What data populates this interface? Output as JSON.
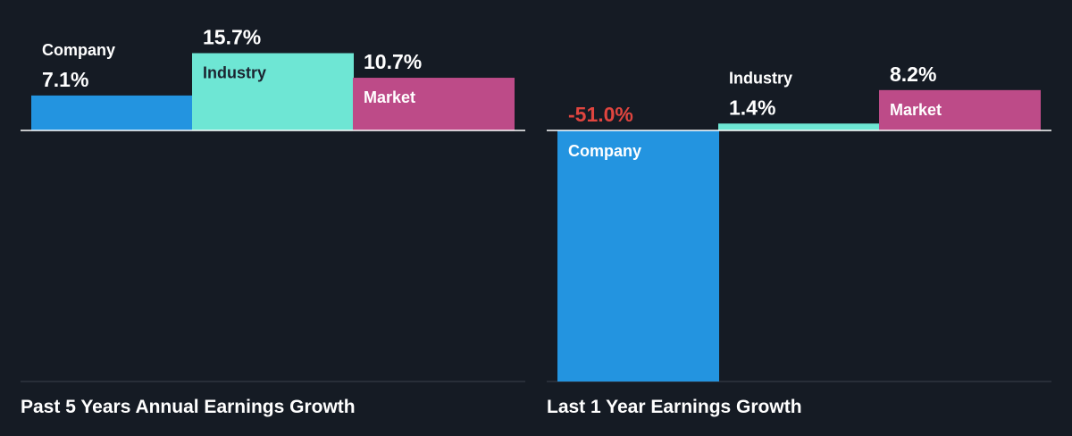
{
  "colors": {
    "background": "#151b24",
    "company": "#2394e0",
    "industry": "#6ee6d4",
    "market": "#bd4b88",
    "negative_value": "#e0453f",
    "text_light": "#ffffff",
    "text_dark": "#1b2430",
    "axis": "#ffffff",
    "baseline": "#3a414b"
  },
  "chart_data": [
    {
      "type": "bar",
      "title": "Past 5 Years Annual Earnings Growth",
      "categories": [
        "Company",
        "Industry",
        "Market"
      ],
      "values": [
        7.1,
        15.7,
        10.7
      ],
      "value_labels": [
        "7.1%",
        "15.7%",
        "10.7%"
      ],
      "unit": "%",
      "ylim": [
        -51,
        15.7
      ],
      "grid": false,
      "legend": "none"
    },
    {
      "type": "bar",
      "title": "Last 1 Year Earnings Growth",
      "categories": [
        "Company",
        "Industry",
        "Market"
      ],
      "values": [
        -51.0,
        1.4,
        8.2
      ],
      "value_labels": [
        "-51.0%",
        "1.4%",
        "8.2%"
      ],
      "unit": "%",
      "ylim": [
        -51,
        15.7
      ],
      "grid": false,
      "legend": "none"
    }
  ]
}
